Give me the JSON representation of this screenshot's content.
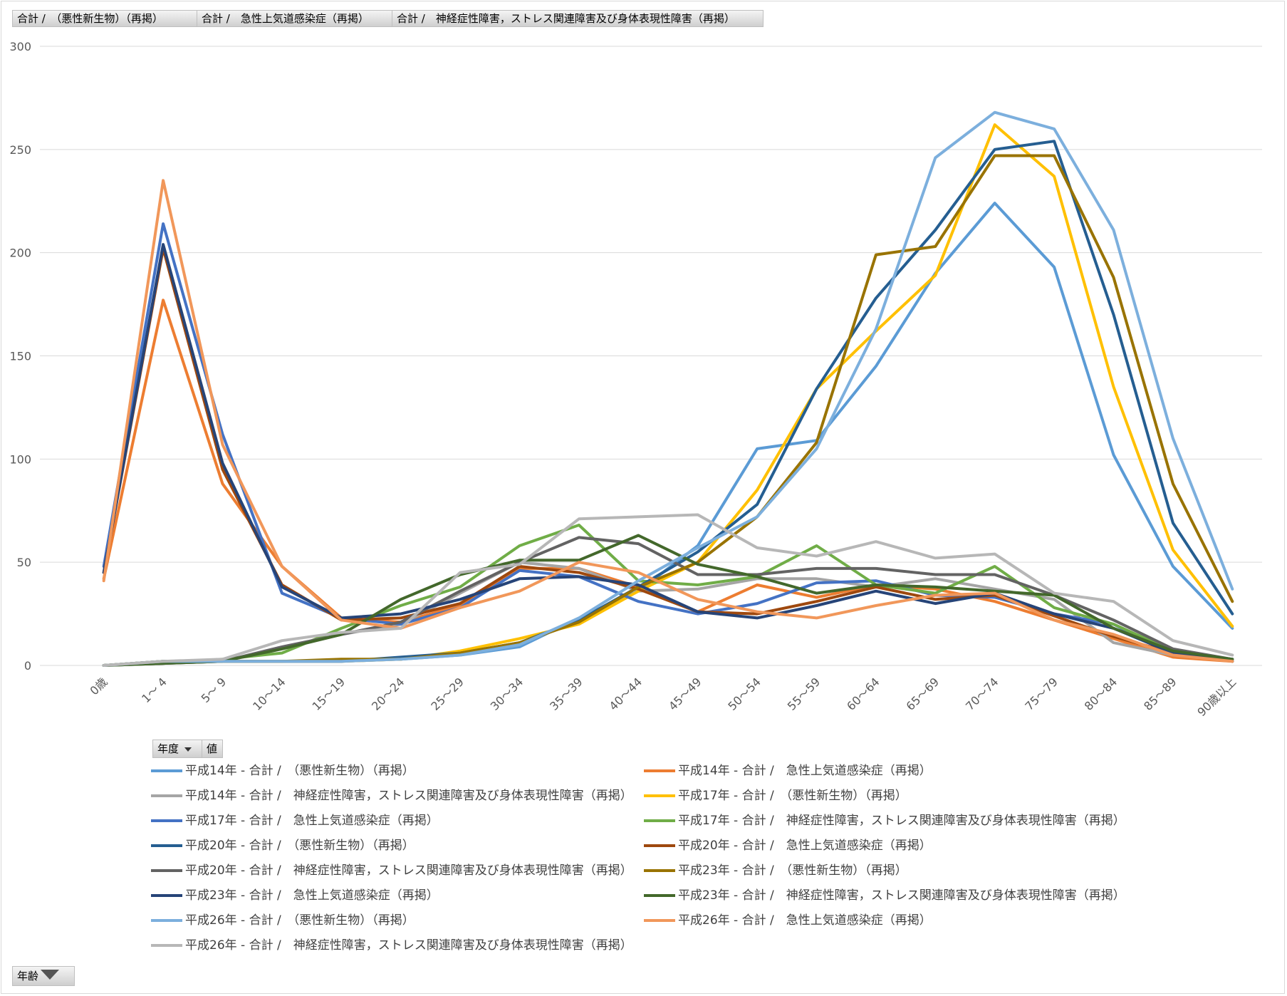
{
  "pivot": {
    "header_fields": [
      "合計 /　（悪性新生物）（再掲）",
      "合計 /　急性上気道感染症（再掲）",
      "合計 /　神経症性障害，ストレス関連障害及び身体表現性障害（再掲）"
    ],
    "row_field": {
      "label": "年度",
      "icon": "dropdown-arrow-icon"
    },
    "values_field": {
      "label": "値"
    },
    "axis_field": {
      "label": "年齢",
      "icon": "filter-icon"
    }
  },
  "chart_data": {
    "type": "line",
    "ylim": [
      0,
      300
    ],
    "yticks": [
      0,
      50,
      100,
      150,
      200,
      250,
      300
    ],
    "grid": true,
    "legend_position": "bottom",
    "categories": [
      "0歳",
      "1～ 4",
      "5～ 9",
      "10～14",
      "15～19",
      "20～24",
      "25～29",
      "30～34",
      "35～39",
      "40～44",
      "45～49",
      "50～54",
      "55～59",
      "60～64",
      "65～69",
      "70～74",
      "75～79",
      "80～84",
      "85～89",
      "90歳以上"
    ],
    "series": [
      {
        "name": "平成14年 - 合計 /　（悪性新生物）（再掲）",
        "color": "#5b9bd5",
        "values": [
          0,
          2,
          2,
          2,
          2,
          3,
          5,
          9,
          23,
          36,
          58,
          105,
          109,
          145,
          190,
          224,
          193,
          102,
          48,
          18
        ]
      },
      {
        "name": "平成14年 - 合計 /　急性上気道感染症（再掲）",
        "color": "#ed7d31",
        "values": [
          42,
          177,
          88,
          48,
          23,
          21,
          29,
          47,
          47,
          38,
          26,
          39,
          33,
          39,
          37,
          31,
          22,
          13,
          4,
          2
        ]
      },
      {
        "name": "平成14年 - 合計 /　神経症性障害，ストレス関連障害及び身体表現性障害（再掲）",
        "color": "#a5a5a5",
        "values": [
          0,
          1,
          2,
          8,
          15,
          20,
          35,
          50,
          47,
          36,
          37,
          42,
          42,
          38,
          42,
          37,
          32,
          11,
          5,
          3
        ]
      },
      {
        "name": "平成17年 - 合計 /　（悪性新生物）（再掲）",
        "color": "#ffc000",
        "values": [
          0,
          2,
          2,
          2,
          2,
          3,
          7,
          13,
          20,
          36,
          50,
          85,
          134,
          162,
          189,
          262,
          237,
          135,
          56,
          19
        ]
      },
      {
        "name": "平成17年 - 合計 /　急性上気道感染症（再掲）",
        "color": "#4472c4",
        "values": [
          48,
          214,
          112,
          35,
          23,
          20,
          28,
          46,
          43,
          31,
          25,
          30,
          40,
          41,
          34,
          33,
          25,
          20,
          5,
          3
        ]
      },
      {
        "name": "平成17年 - 合計 /　神経症性障害，ストレス関連障害及び身体表現性障害（再掲）",
        "color": "#70ad47",
        "values": [
          0,
          1,
          3,
          6,
          18,
          29,
          38,
          58,
          68,
          41,
          39,
          43,
          58,
          39,
          35,
          48,
          28,
          20,
          7,
          3
        ]
      },
      {
        "name": "平成20年 - 合計 /　（悪性新生物）（再掲）",
        "color": "#255e91",
        "values": [
          0,
          2,
          2,
          2,
          2,
          4,
          6,
          11,
          22,
          38,
          55,
          78,
          134,
          178,
          211,
          250,
          254,
          170,
          69,
          25
        ]
      },
      {
        "name": "平成20年 - 合計 /　急性上気道感染症（再掲）",
        "color": "#9e480e",
        "values": [
          45,
          202,
          95,
          39,
          22,
          23,
          30,
          48,
          45,
          37,
          26,
          25,
          31,
          38,
          32,
          34,
          24,
          14,
          6,
          2
        ]
      },
      {
        "name": "平成20年 - 合計 /　神経症性障害，ストレス関連障害及び身体表現性障害（再掲）",
        "color": "#636363",
        "values": [
          0,
          1,
          2,
          9,
          15,
          21,
          36,
          50,
          62,
          59,
          44,
          44,
          47,
          47,
          44,
          44,
          34,
          22,
          8,
          3
        ]
      },
      {
        "name": "平成23年 - 合計 /　（悪性新生物）（再掲）",
        "color": "#997300",
        "values": [
          0,
          2,
          2,
          2,
          3,
          3,
          6,
          11,
          21,
          38,
          50,
          72,
          108,
          199,
          203,
          247,
          247,
          188,
          88,
          31
        ]
      },
      {
        "name": "平成23年 - 合計 /　急性上気道感染症（再掲）",
        "color": "#264478",
        "values": [
          45,
          204,
          98,
          38,
          23,
          25,
          32,
          42,
          43,
          39,
          26,
          23,
          29,
          36,
          30,
          35,
          25,
          18,
          6,
          2
        ]
      },
      {
        "name": "平成23年 - 合計 /　神経症性障害，ストレス関連障害及び身体表現性障害（再掲）",
        "color": "#43682b",
        "values": [
          0,
          1,
          2,
          8,
          15,
          32,
          44,
          51,
          51,
          63,
          49,
          43,
          35,
          39,
          38,
          36,
          34,
          18,
          7,
          3
        ]
      },
      {
        "name": "平成26年 - 合計 /　（悪性新生物）（再掲）",
        "color": "#7cafdd",
        "values": [
          0,
          2,
          2,
          2,
          2,
          3,
          5,
          10,
          23,
          41,
          57,
          72,
          105,
          163,
          246,
          268,
          260,
          211,
          110,
          37
        ]
      },
      {
        "name": "平成26年 - 合計 /　急性上気道感染症（再掲）",
        "color": "#f1975a",
        "values": [
          41,
          235,
          107,
          48,
          22,
          18,
          28,
          36,
          50,
          45,
          32,
          26,
          23,
          29,
          34,
          35,
          22,
          15,
          5,
          2
        ]
      },
      {
        "name": "平成26年 - 合計 /　神経症性障害，ストレス関連障害及び身体表現性障害（再掲）",
        "color": "#b7b7b7",
        "values": [
          0,
          2,
          3,
          12,
          16,
          18,
          45,
          49,
          71,
          72,
          73,
          57,
          53,
          60,
          52,
          54,
          35,
          31,
          12,
          5
        ]
      }
    ]
  }
}
